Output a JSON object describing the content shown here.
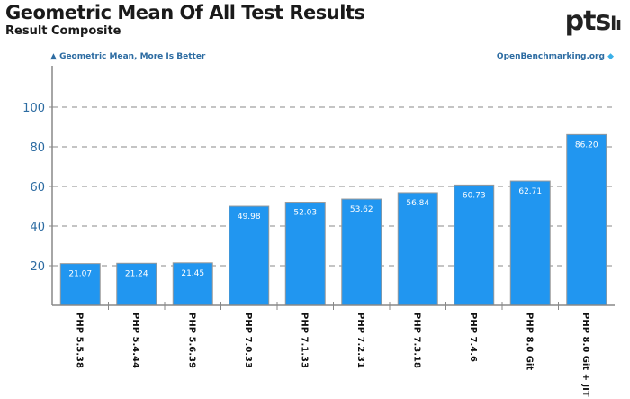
{
  "header": {
    "title": "Geometric Mean Of All Test Results",
    "subtitle": "Result Composite",
    "legend": "Geometric Mean, More Is Better",
    "site": "OpenBenchmarking.org",
    "logo": "ptsh"
  },
  "colors": {
    "bar": "#2196f0",
    "axis_text": "#2d6ca2"
  },
  "chart_data": {
    "type": "bar",
    "title": "Geometric Mean Of All Test Results",
    "subtitle": "Result Composite",
    "ylabel": "Geometric Mean, More Is Better",
    "categories": [
      "PHP 5.5.38",
      "PHP 5.4.44",
      "PHP 5.6.39",
      "PHP 7.0.33",
      "PHP 7.1.33",
      "PHP 7.2.31",
      "PHP 7.3.18",
      "PHP 7.4.6",
      "PHP 8.0 Git",
      "PHP 8.0 Git + JIT"
    ],
    "values": [
      21.07,
      21.24,
      21.45,
      49.98,
      52.03,
      53.62,
      56.84,
      60.73,
      62.71,
      86.2
    ],
    "labels": [
      "21.07",
      "21.24",
      "21.45",
      "49.98",
      "52.03",
      "53.62",
      "56.84",
      "60.73",
      "62.71",
      "86.20"
    ],
    "yticks": [
      20,
      40,
      60,
      80,
      100
    ],
    "ylim": [
      0,
      120
    ],
    "grid": true
  }
}
